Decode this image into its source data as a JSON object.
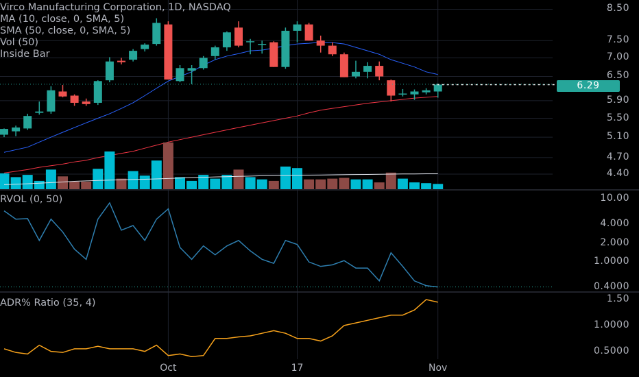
{
  "legend": {
    "title": "Virco Manufacturing Corporation, 1D, NASDAQ",
    "indicators": [
      "MA (10, close, 0, SMA, 5)",
      "SMA (50, close, 0, SMA, 5)",
      "Vol (50)",
      "Inside Bar"
    ]
  },
  "panes": {
    "rvol_label": "RVOL (0, 50)",
    "adr_label": "ADR% Ratio (35, 4)"
  },
  "price_axis": [
    "8.50",
    "7.50",
    "7.00",
    "6.50",
    "5.90",
    "5.50",
    "5.10",
    "4.70",
    "4.40"
  ],
  "rvol_axis": [
    "10.00",
    "4.000",
    "2.000",
    "1.0000",
    "0.4000"
  ],
  "adr_axis": [
    "1.50",
    "1.0000",
    "0.5000"
  ],
  "x_labels": [
    {
      "text": "Oct",
      "index": 14
    },
    {
      "text": "17",
      "index": 25
    },
    {
      "text": "Nov",
      "index": 37
    }
  ],
  "last_price": "6.29",
  "colors": {
    "up": "#26a69a",
    "down": "#ef5350",
    "vol_up": "#00bcd4",
    "vol_down": "#8d4a46",
    "ma10": "#2962ff",
    "sma50": "#f23645",
    "rvol": "#2e7fb0",
    "adr": "#f7a21b",
    "grid": "#1e222d"
  },
  "chart_data": {
    "type": "candlestick",
    "title": "Virco Manufacturing Corporation, 1D, NASDAQ",
    "series": [
      {
        "name": "Price",
        "ohlc": [
          [
            5.15,
            5.28,
            5.1,
            5.27
          ],
          [
            5.22,
            5.34,
            5.12,
            5.3
          ],
          [
            5.28,
            5.6,
            5.25,
            5.55
          ],
          [
            5.62,
            5.88,
            5.58,
            5.65
          ],
          [
            5.65,
            6.25,
            5.6,
            6.15
          ],
          [
            6.12,
            6.28,
            5.98,
            6.0
          ],
          [
            6.02,
            6.05,
            5.78,
            5.85
          ],
          [
            5.88,
            5.95,
            5.78,
            5.82
          ],
          [
            5.85,
            6.4,
            5.8,
            6.38
          ],
          [
            6.4,
            7.02,
            6.35,
            6.9
          ],
          [
            6.92,
            7.0,
            6.82,
            6.88
          ],
          [
            6.95,
            7.25,
            6.9,
            7.2
          ],
          [
            7.25,
            7.42,
            7.18,
            7.38
          ],
          [
            7.4,
            8.2,
            7.35,
            8.05
          ],
          [
            8.0,
            8.1,
            6.42,
            6.42
          ],
          [
            6.38,
            6.8,
            6.35,
            6.72
          ],
          [
            6.65,
            6.8,
            6.3,
            6.72
          ],
          [
            6.72,
            7.05,
            6.68,
            7.0
          ],
          [
            7.05,
            7.35,
            6.95,
            7.3
          ],
          [
            7.3,
            7.78,
            7.2,
            7.75
          ],
          [
            7.9,
            8.1,
            7.3,
            7.35
          ],
          [
            7.45,
            7.55,
            7.1,
            7.48
          ],
          [
            7.4,
            7.5,
            7.12,
            7.4
          ],
          [
            7.45,
            7.48,
            6.75,
            6.75
          ],
          [
            6.75,
            7.9,
            6.7,
            7.8
          ],
          [
            7.8,
            8.1,
            7.45,
            8.0
          ],
          [
            8.0,
            8.05,
            7.5,
            7.5
          ],
          [
            7.5,
            7.65,
            7.15,
            7.35
          ],
          [
            7.35,
            7.45,
            7.05,
            7.1
          ],
          [
            7.1,
            7.15,
            6.48,
            6.48
          ],
          [
            6.5,
            6.92,
            6.45,
            6.62
          ],
          [
            6.62,
            6.88,
            6.45,
            6.78
          ],
          [
            6.78,
            6.9,
            6.4,
            6.5
          ],
          [
            6.4,
            6.42,
            5.88,
            6.02
          ],
          [
            6.05,
            6.18,
            6.0,
            6.07
          ],
          [
            6.05,
            6.17,
            5.92,
            6.12
          ],
          [
            6.1,
            6.2,
            6.05,
            6.15
          ],
          [
            6.12,
            6.32,
            5.97,
            6.29
          ]
        ]
      },
      {
        "name": "MA (10, close, 0, SMA, 5)",
        "values": [
          4.8,
          4.85,
          4.9,
          5.0,
          5.1,
          5.2,
          5.3,
          5.4,
          5.5,
          5.6,
          5.72,
          5.85,
          6.02,
          6.2,
          6.38,
          6.5,
          6.62,
          6.8,
          6.95,
          7.05,
          7.12,
          7.2,
          7.22,
          7.28,
          7.35,
          7.4,
          7.42,
          7.45,
          7.44,
          7.4,
          7.3,
          7.2,
          7.1,
          6.95,
          6.85,
          6.75,
          6.62,
          6.55
        ]
      },
      {
        "name": "SMA (50, close, 0, SMA, 5)",
        "values": [
          4.42,
          4.45,
          4.48,
          4.52,
          4.55,
          4.58,
          4.62,
          4.65,
          4.7,
          4.74,
          4.78,
          4.82,
          4.88,
          4.94,
          5.0,
          5.05,
          5.1,
          5.15,
          5.2,
          5.25,
          5.3,
          5.35,
          5.4,
          5.45,
          5.5,
          5.55,
          5.62,
          5.68,
          5.72,
          5.76,
          5.8,
          5.84,
          5.87,
          5.9,
          5.93,
          5.96,
          5.98,
          6.0
        ]
      },
      {
        "name": "Vol (50)",
        "values": [
          1.05,
          0.8,
          0.95,
          0.55,
          1.3,
          0.85,
          0.5,
          0.5,
          1.35,
          2.5,
          0.7,
          1.2,
          0.9,
          1.9,
          3.1,
          0.8,
          0.55,
          0.95,
          0.7,
          0.95,
          1.3,
          0.8,
          0.65,
          0.55,
          1.5,
          1.4,
          0.65,
          0.65,
          0.7,
          0.75,
          0.65,
          0.65,
          0.45,
          1.1,
          0.7,
          0.45,
          0.4,
          0.35
        ]
      },
      {
        "name": "Vol (50) average",
        "values": [
          0.3,
          0.33,
          0.36,
          0.4,
          0.44,
          0.48,
          0.52,
          0.55,
          0.58,
          0.6,
          0.62,
          0.64,
          0.66,
          0.68,
          0.71,
          0.74,
          0.77,
          0.79,
          0.81,
          0.83,
          0.85,
          0.87,
          0.89,
          0.9,
          0.91,
          0.92,
          0.93,
          0.94,
          0.95,
          0.96,
          0.97,
          0.98,
          0.99,
          1.0,
          1.01,
          1.01,
          1.02,
          1.02
        ]
      },
      {
        "name": "RVOL (0, 50)",
        "values": [
          6.5,
          4.8,
          4.9,
          2.2,
          4.8,
          3.0,
          1.6,
          1.1,
          4.8,
          8.7,
          3.2,
          3.8,
          2.2,
          4.8,
          7.0,
          1.7,
          1.1,
          1.8,
          1.3,
          1.8,
          2.2,
          1.5,
          1.1,
          0.95,
          2.2,
          1.9,
          1.0,
          0.85,
          0.9,
          1.05,
          0.8,
          0.8,
          0.5,
          1.4,
          0.85,
          0.5,
          0.42,
          0.4
        ]
      },
      {
        "name": "ADR% Ratio (35, 4)",
        "values": [
          0.55,
          0.48,
          0.45,
          0.62,
          0.5,
          0.48,
          0.55,
          0.55,
          0.6,
          0.55,
          0.55,
          0.55,
          0.5,
          0.62,
          0.42,
          0.45,
          0.4,
          0.42,
          0.75,
          0.75,
          0.78,
          0.8,
          0.85,
          0.9,
          0.85,
          0.75,
          0.75,
          0.7,
          0.8,
          1.0,
          1.05,
          1.1,
          1.15,
          1.2,
          1.2,
          1.3,
          1.5,
          1.45
        ]
      }
    ],
    "price_range": [
      4.2,
      8.7
    ],
    "scale": "log",
    "grid": true,
    "last_price": 6.29
  }
}
